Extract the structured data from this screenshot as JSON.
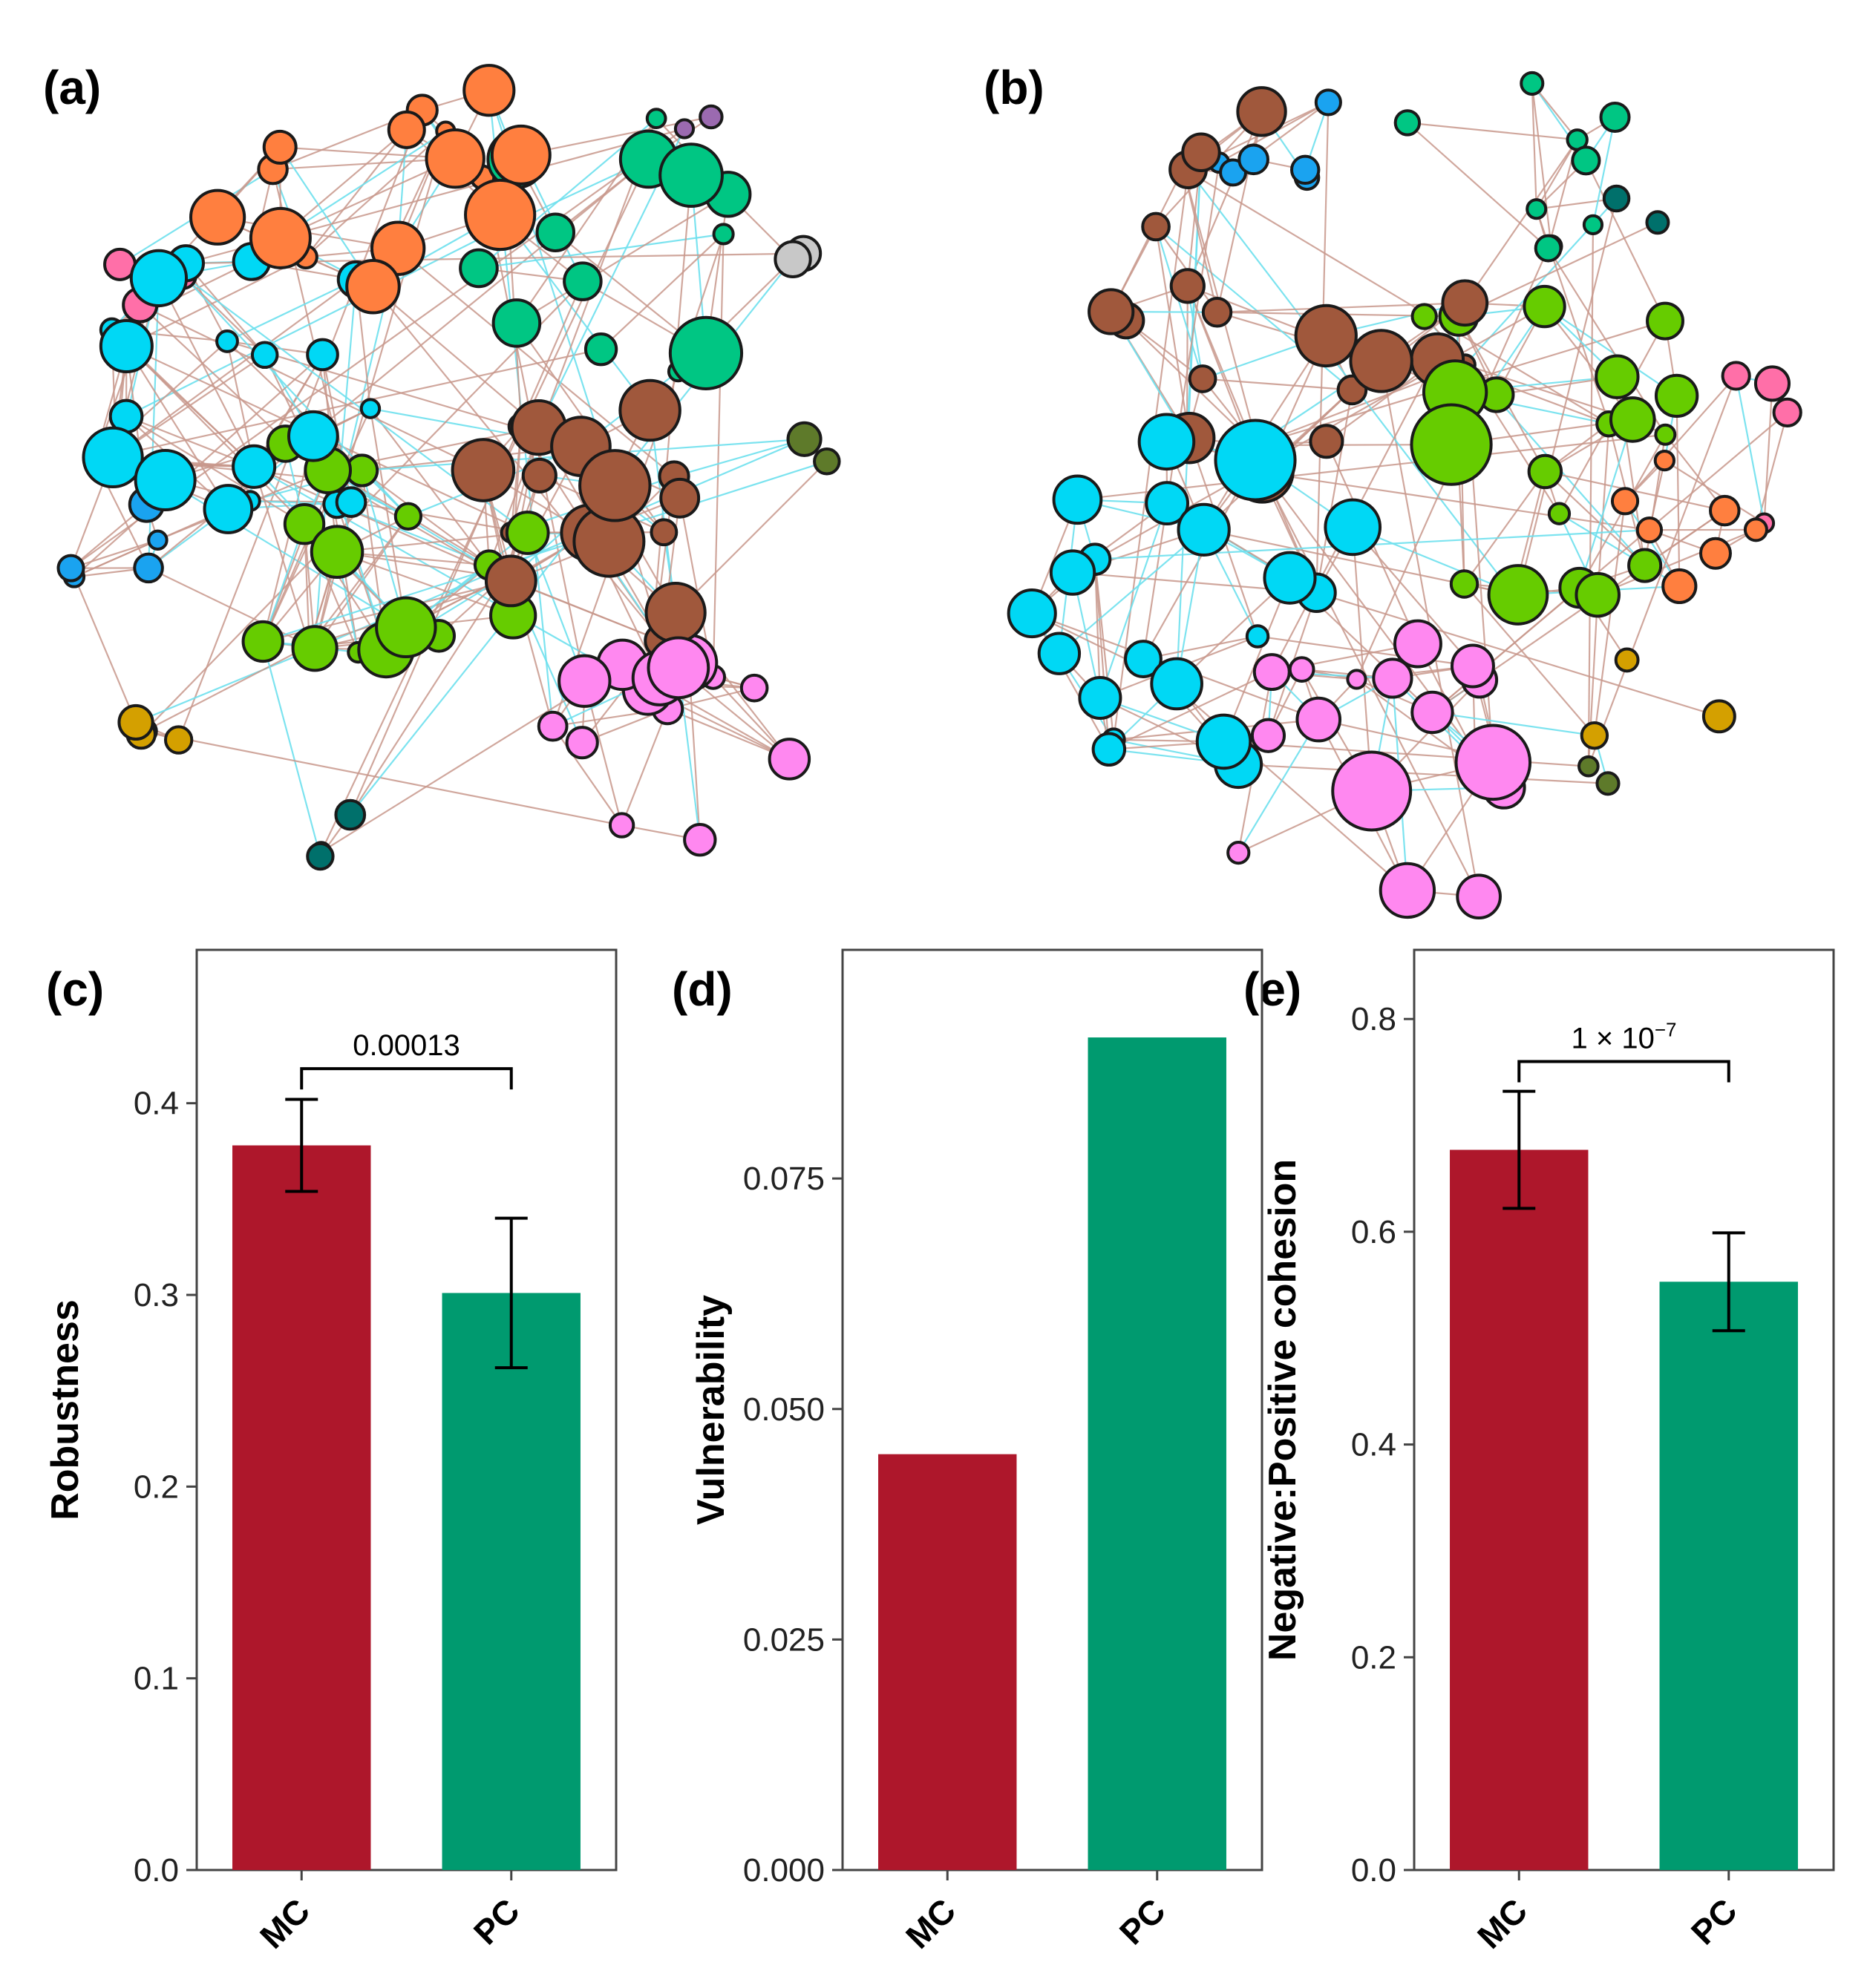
{
  "panel_labels": [
    "(a)",
    "(b)",
    "(c)",
    "(d)",
    "(e)"
  ],
  "colors": {
    "MC": "#ae172b",
    "PC": "#009a6f",
    "edge_positive": "#c8988c",
    "edge_negative": "#6ee0ee",
    "modules": [
      "#ff7f3f",
      "#00d8f5",
      "#00c683",
      "#66cc00",
      "#a0583c",
      "#ff88f0",
      "#1aa3f0",
      "#ff6fa8",
      "#d4a000",
      "#00706b",
      "#5e7a2a",
      "#9b6ab0",
      "#c8c8c8"
    ]
  },
  "chart_data": [
    {
      "panel": "(c)",
      "type": "bar",
      "categories": [
        "MC",
        "PC"
      ],
      "values": [
        0.378,
        0.301
      ],
      "error": [
        [
          0.354,
          0.402
        ],
        [
          0.262,
          0.34
        ]
      ],
      "colors": [
        "#ae172b",
        "#009a6f"
      ],
      "xlabel": "",
      "ylabel": "Robustness",
      "ylim": [
        0,
        0.48
      ],
      "yticks": [
        0.0,
        0.1,
        0.2,
        0.3,
        0.4
      ],
      "ytick_labels": [
        "0.0",
        "0.1",
        "0.2",
        "0.3",
        "0.4"
      ],
      "significance": {
        "label": "0.00013",
        "y": 0.418
      }
    },
    {
      "panel": "(d)",
      "type": "bar",
      "categories": [
        "MC",
        "PC"
      ],
      "values": [
        0.0451,
        0.0903
      ],
      "colors": [
        "#ae172b",
        "#009a6f"
      ],
      "xlabel": "",
      "ylabel": "Vulnerability",
      "ylim": [
        0,
        0.0998
      ],
      "yticks": [
        0.0,
        0.025,
        0.05,
        0.075
      ],
      "ytick_labels": [
        "0.000",
        "0.025",
        "0.050",
        "0.075"
      ]
    },
    {
      "panel": "(e)",
      "type": "bar",
      "categories": [
        "MC",
        "PC"
      ],
      "values": [
        0.677,
        0.553
      ],
      "error": [
        [
          0.622,
          0.732
        ],
        [
          0.507,
          0.599
        ]
      ],
      "colors": [
        "#ae172b",
        "#009a6f"
      ],
      "xlabel": "",
      "ylabel": "Negative:Positive cohesion",
      "ylim": [
        0,
        0.865
      ],
      "yticks": [
        0.0,
        0.2,
        0.4,
        0.6,
        0.8
      ],
      "ytick_labels": [
        "0.0",
        "0.2",
        "0.4",
        "0.6",
        "0.8"
      ],
      "significance": {
        "label": "1 × 10",
        "label_exponent": "−7",
        "y": 0.76
      }
    }
  ]
}
